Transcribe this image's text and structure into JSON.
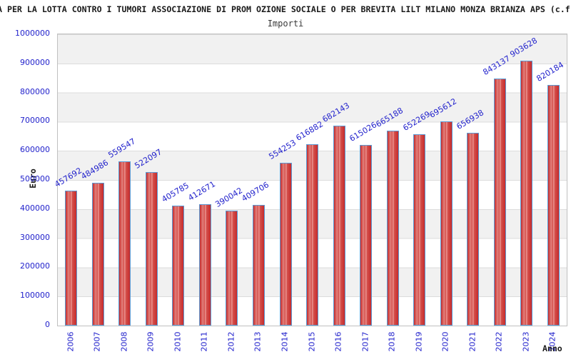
{
  "header": {
    "title_visible": "A PER LA LOTTA CONTRO I TUMORI ASSOCIAZIONE DI PROM OZIONE SOCIALE O PER BREVITA LILT MILANO MONZA BRIANZA APS (c.f"
  },
  "chart_data": {
    "type": "bar",
    "title": "Importi",
    "xlabel": "Anno",
    "ylabel": "Euro",
    "categories": [
      "2006",
      "2007",
      "2008",
      "2009",
      "2010",
      "2011",
      "2012",
      "2013",
      "2014",
      "2015",
      "2016",
      "2017",
      "2018",
      "2019",
      "2020",
      "2021",
      "2022",
      "2023",
      "2024"
    ],
    "values": [
      457692,
      484986,
      559547,
      522097,
      405785,
      412671,
      390042,
      409706,
      554253,
      616882,
      682143,
      615026,
      665188,
      652269,
      695612,
      656938,
      843137,
      903628,
      820184
    ],
    "ylim": [
      0,
      1000000
    ],
    "y_ticks": [
      0,
      100000,
      200000,
      300000,
      400000,
      500000,
      600000,
      700000,
      800000,
      900000,
      1000000
    ],
    "legend": "none",
    "grid": "horizontal-bands-alternating",
    "colors": {
      "bar_fill_edge": "#c62b2b",
      "bar_fill_center": "#ee9d99",
      "bar_border": "#5b9bd5",
      "label_blue": "#2222cc",
      "band_gray": "#f1f1f1",
      "grid_line": "#dcdcdc",
      "plot_border": "#c0c0c0",
      "text_dark": "#1a1a1a"
    }
  }
}
